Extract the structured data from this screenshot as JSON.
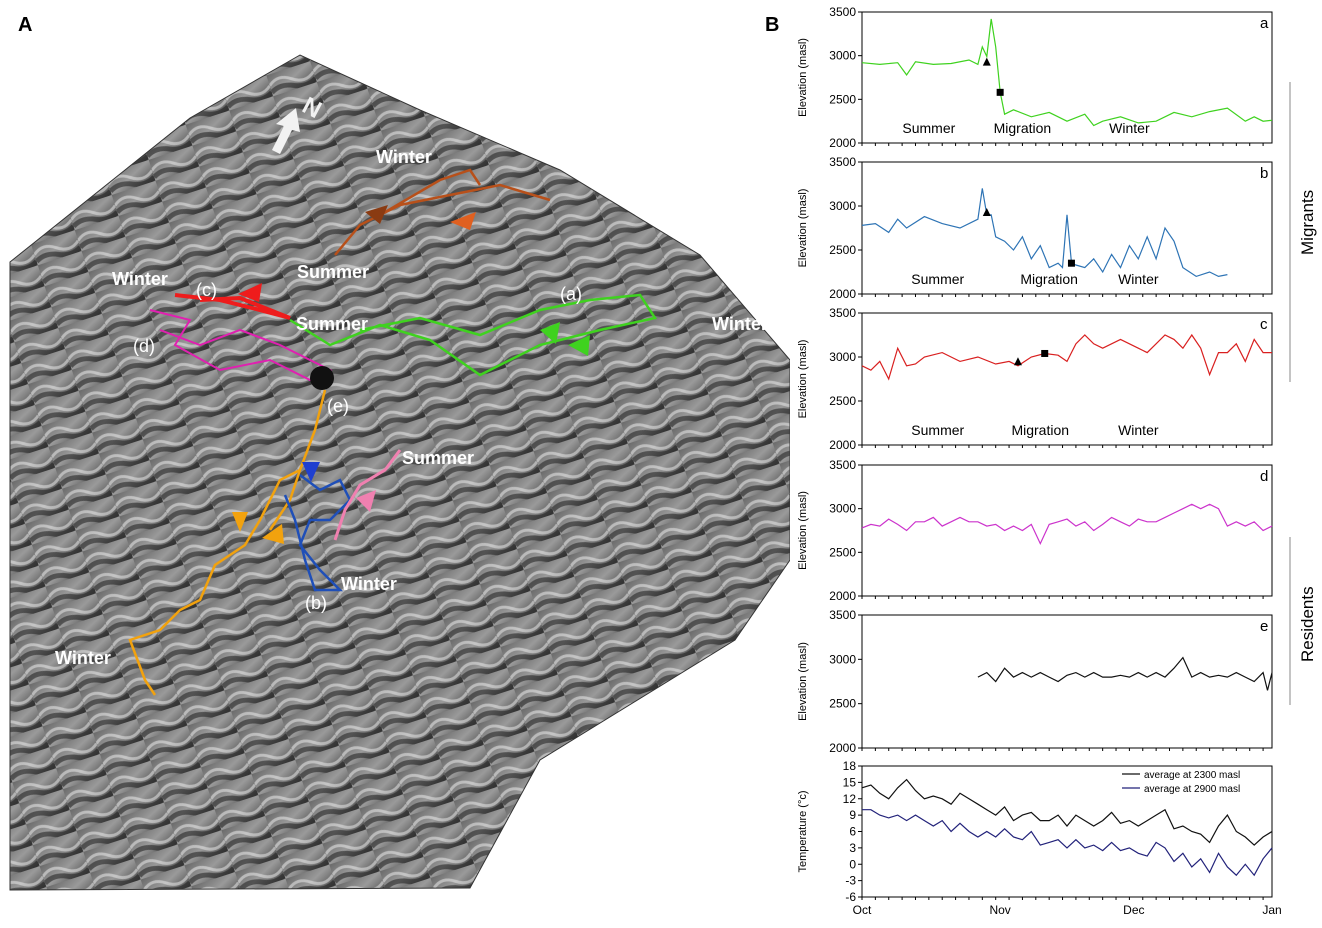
{
  "panels": {
    "A": "A",
    "B": "B"
  },
  "map": {
    "north_label": "N",
    "labels": [
      {
        "id": "winter-top",
        "text": "Winter",
        "color": "#ffffff"
      },
      {
        "id": "summer-top",
        "text": "Summer",
        "color": "#ffffff"
      },
      {
        "id": "winter-c",
        "text": "Winter",
        "color": "#ffffff"
      },
      {
        "id": "tag-c",
        "text": "(c)",
        "color": "#ffffff"
      },
      {
        "id": "summer-mid",
        "text": "Summer",
        "color": "#ffffff"
      },
      {
        "id": "tag-a",
        "text": "(a)",
        "color": "#ffffff"
      },
      {
        "id": "winter-right",
        "text": "Winter",
        "color": "#ffffff"
      },
      {
        "id": "tag-d",
        "text": "(d)",
        "color": "#ffffff"
      },
      {
        "id": "tag-e",
        "text": "(e)",
        "color": "#ffffff"
      },
      {
        "id": "summer-pink",
        "text": "Summer",
        "color": "#ffffff"
      },
      {
        "id": "winter-b",
        "text": "Winter",
        "color": "#ffffff"
      },
      {
        "id": "tag-b",
        "text": "(b)",
        "color": "#ffffff"
      },
      {
        "id": "winter-orange",
        "text": "Winter",
        "color": "#ffffff"
      }
    ],
    "track_colors": {
      "a": "#3fd21f",
      "b": "#1f4fb8",
      "c": "#ee1c1c",
      "d": "#e020b0",
      "e": "#111111",
      "orange": "#f2a20e",
      "brown": "#b8501a",
      "pink": "#f080b0"
    }
  },
  "group_labels": {
    "migrants": "Migrants",
    "residents": "Residents"
  },
  "chart_data": [
    {
      "type": "line",
      "panel": "a",
      "ylabel": "Elevation (masl)",
      "ylim": [
        2000,
        3500
      ],
      "yticks": [
        2000,
        2500,
        3000,
        3500
      ],
      "color": "#3fd21f",
      "phase_labels": [
        {
          "text": "Summer",
          "x": 15
        },
        {
          "text": "Migration",
          "x": 36
        },
        {
          "text": "Winter",
          "x": 60
        }
      ],
      "markers": [
        {
          "shape": "triangle",
          "x": 28,
          "y": 2920
        },
        {
          "shape": "square",
          "x": 31,
          "y": 2580
        }
      ],
      "x": [
        0,
        4,
        8,
        10,
        12,
        16,
        20,
        24,
        26,
        27,
        28,
        29,
        30,
        31,
        32,
        34,
        38,
        42,
        46,
        50,
        52,
        54,
        58,
        62,
        66,
        70,
        74,
        78,
        82,
        86,
        88,
        90,
        92
      ],
      "y": [
        2920,
        2900,
        2920,
        2780,
        2930,
        2900,
        2910,
        2950,
        2900,
        3100,
        2990,
        3420,
        3100,
        2580,
        2330,
        2380,
        2300,
        2350,
        2250,
        2330,
        2200,
        2250,
        2300,
        2230,
        2250,
        2350,
        2300,
        2360,
        2400,
        2250,
        2300,
        2250,
        2260
      ]
    },
    {
      "type": "line",
      "panel": "b",
      "ylabel": "Elevation (masl)",
      "ylim": [
        2000,
        3500
      ],
      "yticks": [
        2000,
        2500,
        3000,
        3500
      ],
      "color": "#2e74b5",
      "phase_labels": [
        {
          "text": "Summer",
          "x": 17
        },
        {
          "text": "Migration",
          "x": 42
        },
        {
          "text": "Winter",
          "x": 62
        }
      ],
      "markers": [
        {
          "shape": "triangle",
          "x": 28,
          "y": 2920
        },
        {
          "shape": "square",
          "x": 47,
          "y": 2350
        }
      ],
      "x": [
        0,
        3,
        6,
        8,
        10,
        14,
        18,
        22,
        26,
        27,
        28,
        29,
        30,
        32,
        34,
        36,
        38,
        40,
        42,
        44,
        45,
        46,
        47,
        48,
        50,
        52,
        54,
        56,
        58,
        60,
        62,
        64,
        66,
        68,
        70,
        72,
        75,
        78,
        80,
        82
      ],
      "y": [
        2780,
        2800,
        2700,
        2850,
        2750,
        2880,
        2800,
        2750,
        2850,
        3200,
        2900,
        2900,
        2650,
        2600,
        2500,
        2650,
        2400,
        2550,
        2300,
        2350,
        2300,
        2900,
        2350,
        2330,
        2300,
        2400,
        2250,
        2450,
        2300,
        2550,
        2400,
        2650,
        2400,
        2750,
        2600,
        2300,
        2200,
        2250,
        2200,
        2220
      ]
    },
    {
      "type": "line",
      "panel": "c",
      "ylabel": "Elevation (masl)",
      "ylim": [
        2000,
        3500
      ],
      "yticks": [
        2000,
        2500,
        3000,
        3500
      ],
      "color": "#d92020",
      "phase_labels": [
        {
          "text": "Summer",
          "x": 17
        },
        {
          "text": "Migration",
          "x": 40
        },
        {
          "text": "Winter",
          "x": 62
        }
      ],
      "markers": [
        {
          "shape": "triangle",
          "x": 35,
          "y": 2940
        },
        {
          "shape": "square",
          "x": 41,
          "y": 3040
        }
      ],
      "x": [
        0,
        2,
        4,
        6,
        8,
        10,
        12,
        14,
        18,
        22,
        26,
        30,
        33,
        35,
        38,
        41,
        44,
        46,
        48,
        50,
        52,
        54,
        56,
        58,
        60,
        62,
        64,
        66,
        68,
        70,
        72,
        74,
        76,
        78,
        80,
        82,
        84,
        86,
        88,
        90,
        92
      ],
      "y": [
        2900,
        2850,
        2950,
        2750,
        3100,
        2900,
        2920,
        3000,
        3050,
        2950,
        3000,
        2920,
        2950,
        2900,
        3000,
        3040,
        3020,
        2950,
        3150,
        3250,
        3150,
        3100,
        3150,
        3200,
        3150,
        3100,
        3050,
        3150,
        3250,
        3200,
        3100,
        3250,
        3100,
        2800,
        3050,
        3050,
        3150,
        2950,
        3200,
        3050,
        3050
      ]
    },
    {
      "type": "line",
      "panel": "d",
      "ylabel": "Elevation (masl)",
      "ylim": [
        2000,
        3500
      ],
      "yticks": [
        2000,
        2500,
        3000,
        3500
      ],
      "color": "#cc33cc",
      "phase_labels": [],
      "markers": [],
      "x": [
        0,
        2,
        4,
        6,
        8,
        10,
        12,
        14,
        16,
        18,
        20,
        22,
        24,
        26,
        28,
        30,
        32,
        34,
        36,
        38,
        40,
        42,
        44,
        46,
        48,
        50,
        52,
        54,
        56,
        58,
        60,
        62,
        64,
        66,
        68,
        70,
        72,
        74,
        76,
        78,
        80,
        82,
        84,
        86,
        88,
        90,
        92
      ],
      "y": [
        2780,
        2820,
        2800,
        2880,
        2820,
        2750,
        2850,
        2850,
        2900,
        2800,
        2850,
        2900,
        2850,
        2850,
        2800,
        2820,
        2750,
        2800,
        2750,
        2820,
        2600,
        2820,
        2850,
        2880,
        2800,
        2850,
        2750,
        2820,
        2900,
        2850,
        2800,
        2880,
        2850,
        2850,
        2900,
        2950,
        3000,
        3050,
        3000,
        3050,
        3000,
        2800,
        2850,
        2800,
        2850,
        2750,
        2800
      ]
    },
    {
      "type": "line",
      "panel": "e",
      "ylabel": "Elevation (masl)",
      "ylim": [
        2000,
        3500
      ],
      "yticks": [
        2000,
        2500,
        3000,
        3500
      ],
      "color": "#111111",
      "phase_labels": [],
      "markers": [],
      "x": [
        26,
        28,
        30,
        32,
        34,
        36,
        38,
        40,
        42,
        44,
        46,
        48,
        50,
        52,
        54,
        56,
        58,
        60,
        62,
        64,
        66,
        68,
        70,
        72,
        74,
        76,
        78,
        80,
        82,
        84,
        86,
        88,
        90,
        91,
        92
      ],
      "y": [
        2800,
        2850,
        2750,
        2900,
        2800,
        2850,
        2800,
        2850,
        2800,
        2750,
        2820,
        2850,
        2800,
        2850,
        2800,
        2800,
        2820,
        2800,
        2850,
        2800,
        2850,
        2800,
        2900,
        3020,
        2800,
        2850,
        2800,
        2820,
        2800,
        2850,
        2800,
        2750,
        2850,
        2650,
        2850
      ]
    },
    {
      "type": "line",
      "panel": "temp",
      "ylabel": "Temperature (°c)",
      "ylim": [
        -6,
        18
      ],
      "yticks": [
        -6,
        -3,
        0,
        3,
        6,
        9,
        12,
        15,
        18
      ],
      "xticks": [
        {
          "label": "Oct",
          "x": 0
        },
        {
          "label": "Nov",
          "x": 31
        },
        {
          "label": "Dec",
          "x": 61
        },
        {
          "label": "Jan",
          "x": 92
        }
      ],
      "series": [
        {
          "name": "average at 2300 masl",
          "color": "#111111",
          "x": [
            0,
            2,
            4,
            6,
            8,
            10,
            12,
            14,
            16,
            18,
            20,
            22,
            24,
            26,
            28,
            30,
            32,
            34,
            36,
            38,
            40,
            42,
            44,
            46,
            48,
            50,
            52,
            54,
            56,
            58,
            60,
            62,
            64,
            66,
            68,
            70,
            72,
            74,
            76,
            78,
            80,
            82,
            84,
            86,
            88,
            90,
            92
          ],
          "y": [
            14,
            14.5,
            13,
            12,
            14,
            15.5,
            13.5,
            12,
            12.5,
            12,
            11,
            13,
            12,
            11,
            10,
            9,
            10.5,
            8,
            9,
            9.5,
            8,
            8,
            9,
            7,
            9,
            8,
            7,
            8,
            9.5,
            7.5,
            8,
            7,
            8,
            9,
            10,
            6.5,
            7,
            6,
            5.5,
            4,
            7,
            9,
            6,
            5,
            3.5,
            5,
            6
          ]
        },
        {
          "name": "average at 2900 masl",
          "color": "#22227a",
          "x": [
            0,
            2,
            4,
            6,
            8,
            10,
            12,
            14,
            16,
            18,
            20,
            22,
            24,
            26,
            28,
            30,
            32,
            34,
            36,
            38,
            40,
            42,
            44,
            46,
            48,
            50,
            52,
            54,
            56,
            58,
            60,
            62,
            64,
            66,
            68,
            70,
            72,
            74,
            76,
            78,
            80,
            82,
            84,
            86,
            88,
            90,
            92
          ],
          "y": [
            10,
            10,
            9,
            8.5,
            9,
            8,
            9,
            8,
            7,
            8,
            6,
            7.5,
            6,
            5,
            6,
            5,
            6.5,
            5,
            4.5,
            6,
            3.5,
            4,
            4.5,
            3,
            4.5,
            3,
            3.5,
            2.5,
            4,
            2.5,
            3,
            2,
            1.5,
            4,
            3,
            0.5,
            2,
            -0.5,
            1,
            -1.5,
            2,
            -0.5,
            -2,
            0,
            -2,
            1,
            3
          ]
        }
      ]
    }
  ]
}
